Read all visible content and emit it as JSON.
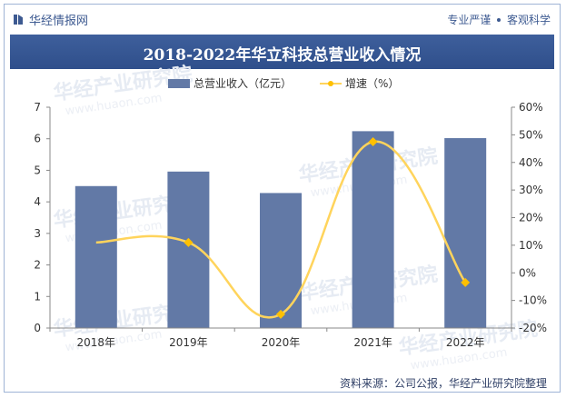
{
  "header": {
    "brand": "华经情报网",
    "slogan_left": "专业严谨",
    "slogan_right": "客观科学"
  },
  "footer": {
    "source": "资料来源：公司公报，华经产业研究院整理"
  },
  "watermark": {
    "text": "华经产业研究院",
    "url": "www.huaon.com"
  },
  "colors": {
    "bar": "#6279a6",
    "line": "#ffd45c",
    "marker": "#ffc000",
    "title_bg": "#34548f"
  },
  "chart_data": {
    "type": "bar",
    "title": "2018-2022年华立科技总营业收入情况",
    "categories": [
      "2018年",
      "2019年",
      "2020年",
      "2021年",
      "2022年"
    ],
    "series": [
      {
        "name": "总营业收入（亿元）",
        "type": "bar",
        "axis": "left",
        "values": [
          4.5,
          4.96,
          4.28,
          6.24,
          6.02
        ]
      },
      {
        "name": "增速（%）",
        "type": "line",
        "axis": "right",
        "values": [
          11,
          11,
          -15,
          47.5,
          -3.5
        ]
      }
    ],
    "left_axis": {
      "range": [
        0,
        7
      ],
      "ticks": [
        "0",
        "1",
        "2",
        "3",
        "4",
        "5",
        "6",
        "7"
      ]
    },
    "right_axis": {
      "range": [
        -20,
        60
      ],
      "ticks": [
        "-20%",
        "-10%",
        "0%",
        "10%",
        "20%",
        "30%",
        "40%",
        "50%",
        "60%"
      ]
    },
    "legend": [
      "总营业收入（亿元）",
      "增速（%）"
    ],
    "grid": false
  }
}
